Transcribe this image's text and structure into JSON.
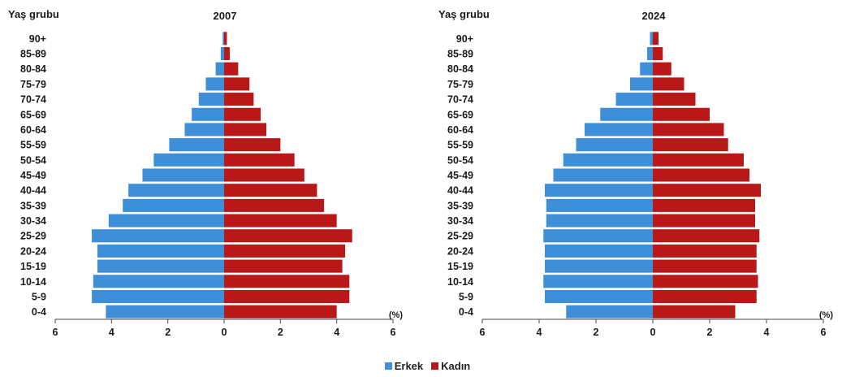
{
  "colors": {
    "male": "#3f8fd8",
    "female": "#b81818"
  },
  "legend": {
    "male": "Erkek",
    "female": "Kadın"
  },
  "chart_data": [
    {
      "type": "bar",
      "title": "2007",
      "ylabel": "Yaş grubu",
      "xlabel": "(%)",
      "xlim": [
        -6,
        6
      ],
      "xticks": [
        "6",
        "4",
        "2",
        "0",
        "2",
        "4",
        "6"
      ],
      "categories": [
        "90+",
        "85-89",
        "80-84",
        "75-79",
        "70-74",
        "65-69",
        "60-64",
        "55-59",
        "50-54",
        "45-49",
        "40-44",
        "35-39",
        "30-34",
        "25-29",
        "20-24",
        "15-19",
        "10-14",
        "5-9",
        "0-4"
      ],
      "series": [
        {
          "name": "Erkek",
          "values": [
            0.05,
            0.12,
            0.3,
            0.65,
            0.9,
            1.15,
            1.4,
            1.95,
            2.5,
            2.9,
            3.4,
            3.6,
            4.1,
            4.7,
            4.5,
            4.5,
            4.65,
            4.7,
            4.2
          ]
        },
        {
          "name": "Kadın",
          "values": [
            0.1,
            0.2,
            0.5,
            0.9,
            1.05,
            1.3,
            1.5,
            2.0,
            2.5,
            2.85,
            3.3,
            3.55,
            4.0,
            4.55,
            4.3,
            4.2,
            4.45,
            4.45,
            4.0
          ]
        }
      ]
    },
    {
      "type": "bar",
      "title": "2024",
      "ylabel": "Yaş grubu",
      "xlabel": "(%)",
      "xlim": [
        -6,
        6
      ],
      "xticks": [
        "6",
        "4",
        "2",
        "0",
        "2",
        "4",
        "6"
      ],
      "categories": [
        "90+",
        "85-89",
        "80-84",
        "75-79",
        "70-74",
        "65-69",
        "60-64",
        "55-59",
        "50-54",
        "45-49",
        "40-44",
        "35-39",
        "30-34",
        "25-29",
        "20-24",
        "15-19",
        "10-14",
        "5-9",
        "0-4"
      ],
      "series": [
        {
          "name": "Erkek",
          "values": [
            0.1,
            0.2,
            0.45,
            0.8,
            1.3,
            1.85,
            2.4,
            2.7,
            3.15,
            3.5,
            3.8,
            3.75,
            3.75,
            3.85,
            3.8,
            3.8,
            3.85,
            3.8,
            3.05
          ]
        },
        {
          "name": "Kadın",
          "values": [
            0.2,
            0.35,
            0.65,
            1.1,
            1.5,
            2.0,
            2.5,
            2.65,
            3.2,
            3.4,
            3.8,
            3.6,
            3.6,
            3.75,
            3.65,
            3.65,
            3.7,
            3.65,
            2.9
          ]
        }
      ]
    }
  ]
}
